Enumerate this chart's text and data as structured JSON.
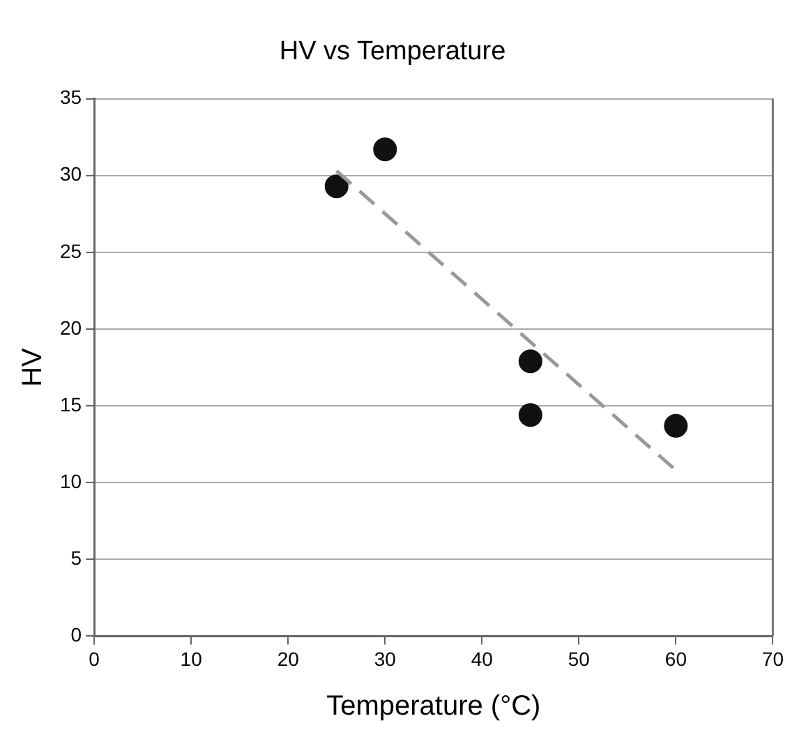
{
  "chart_data": {
    "type": "scatter",
    "title": "HV vs Temperature",
    "xlabel": "Temperature (°C)",
    "ylabel": "HV",
    "xlim": [
      0,
      70
    ],
    "xticks": [
      0,
      10,
      20,
      30,
      40,
      50,
      60,
      70
    ],
    "ylim": [
      0,
      35
    ],
    "yticks": [
      0,
      5,
      10,
      15,
      20,
      25,
      30,
      35
    ],
    "grid": "y",
    "marker": "circle",
    "series": [
      {
        "type": "scatter",
        "color": "#111111",
        "x": [
          25,
          30,
          45,
          45,
          60
        ],
        "values": [
          29.3,
          31.7,
          17.9,
          14.4,
          13.7
        ]
      },
      {
        "type": "line",
        "color": "#999999",
        "line_style": "dashed",
        "marker": "none",
        "x": [
          25,
          60
        ],
        "values": [
          30.3,
          10.8
        ]
      }
    ]
  }
}
